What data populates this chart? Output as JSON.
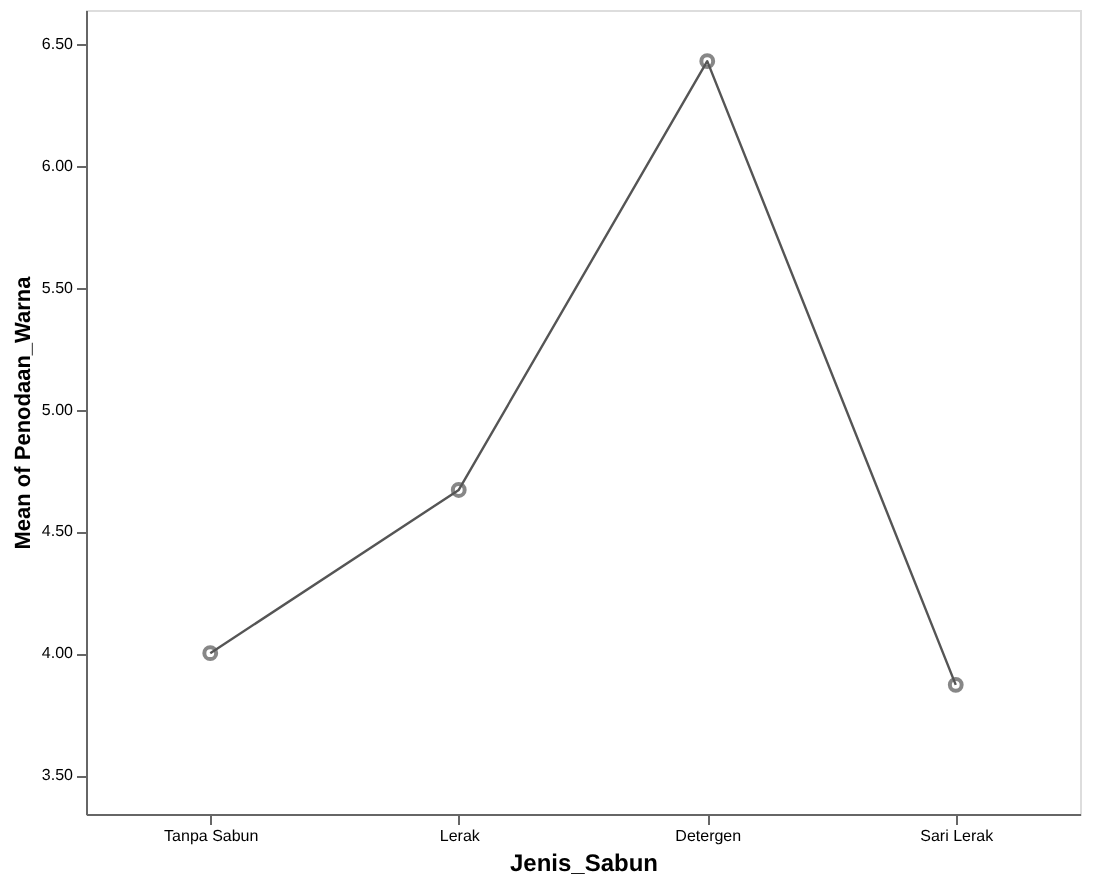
{
  "chart_data": {
    "type": "line",
    "xlabel": "Jenis_Sabun",
    "ylabel": "Mean of Penodaan_Warna",
    "categories": [
      "Tanpa Sabun",
      "Lerak",
      "Detergen",
      "Sari Lerak"
    ],
    "series": [
      {
        "color": "#555555",
        "values": [
          4.0,
          4.67,
          6.43,
          3.87
        ]
      }
    ],
    "ylim": [
      3.34,
      6.64
    ],
    "yticks": [
      {
        "value": 3.5,
        "label": "3.50"
      },
      {
        "value": 4.0,
        "label": "4.00"
      },
      {
        "value": 4.5,
        "label": "4.50"
      },
      {
        "value": 5.0,
        "label": "5.00"
      },
      {
        "value": 5.5,
        "label": "5.50"
      },
      {
        "value": 6.0,
        "label": "6.00"
      },
      {
        "value": 6.5,
        "label": "6.50"
      }
    ],
    "marker": "circle",
    "grid": false
  }
}
